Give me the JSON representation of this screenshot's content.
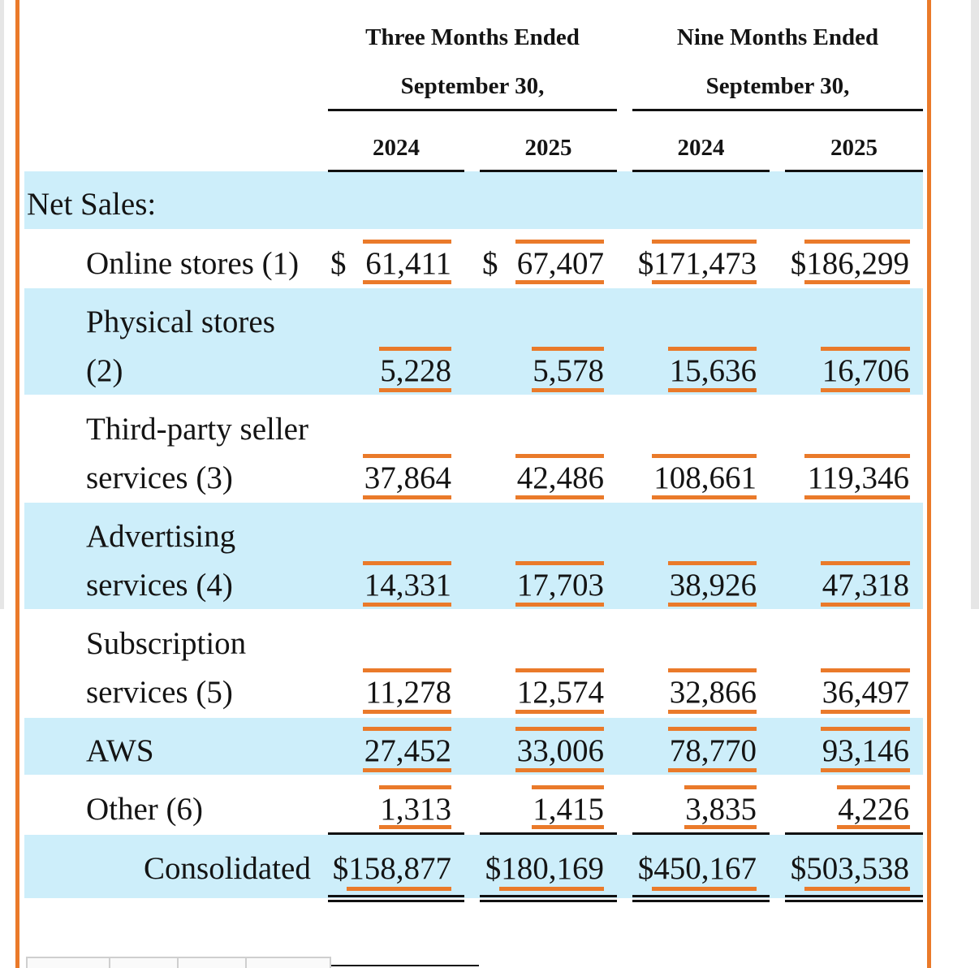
{
  "header": {
    "group1_line1": "Three Months Ended",
    "group1_line2": "September 30,",
    "group2_line1": "Nine Months Ended",
    "group2_line2": "September 30,",
    "years": [
      "2024",
      "2025",
      "2024",
      "2025"
    ]
  },
  "section_label": "Net Sales:",
  "currency_symbol": "$",
  "rows": [
    {
      "label_line1": "Online stores (1)",
      "label_line2": "",
      "values": [
        "61,411",
        "67,407",
        "$171,473",
        "$186,299"
      ]
    },
    {
      "label_line1": "Physical stores",
      "label_line2": "(2)",
      "values": [
        "5,228",
        "5,578",
        "15,636",
        "16,706"
      ]
    },
    {
      "label_line1": "Third-party seller",
      "label_line2": "services (3)",
      "values": [
        "37,864",
        "42,486",
        "108,661",
        "119,346"
      ]
    },
    {
      "label_line1": "Advertising",
      "label_line2": "services (4)",
      "values": [
        "14,331",
        "17,703",
        "38,926",
        "47,318"
      ]
    },
    {
      "label_line1": "Subscription",
      "label_line2": "services (5)",
      "values": [
        "11,278",
        "12,574",
        "32,866",
        "36,497"
      ]
    },
    {
      "label_line1": "AWS",
      "label_line2": "",
      "values": [
        "27,452",
        "33,006",
        "78,770",
        "93,146"
      ]
    },
    {
      "label_line1": "Other (6)",
      "label_line2": "",
      "values": [
        "1,313",
        "1,415",
        "3,835",
        "4,226"
      ]
    }
  ],
  "total": {
    "label": "Consolidated",
    "values": [
      "$158,877",
      "$180,169",
      "$450,167",
      "$503,538"
    ]
  },
  "colors": {
    "accent": "#ea7a2a",
    "band": "#cdeefa",
    "text": "#141414"
  }
}
